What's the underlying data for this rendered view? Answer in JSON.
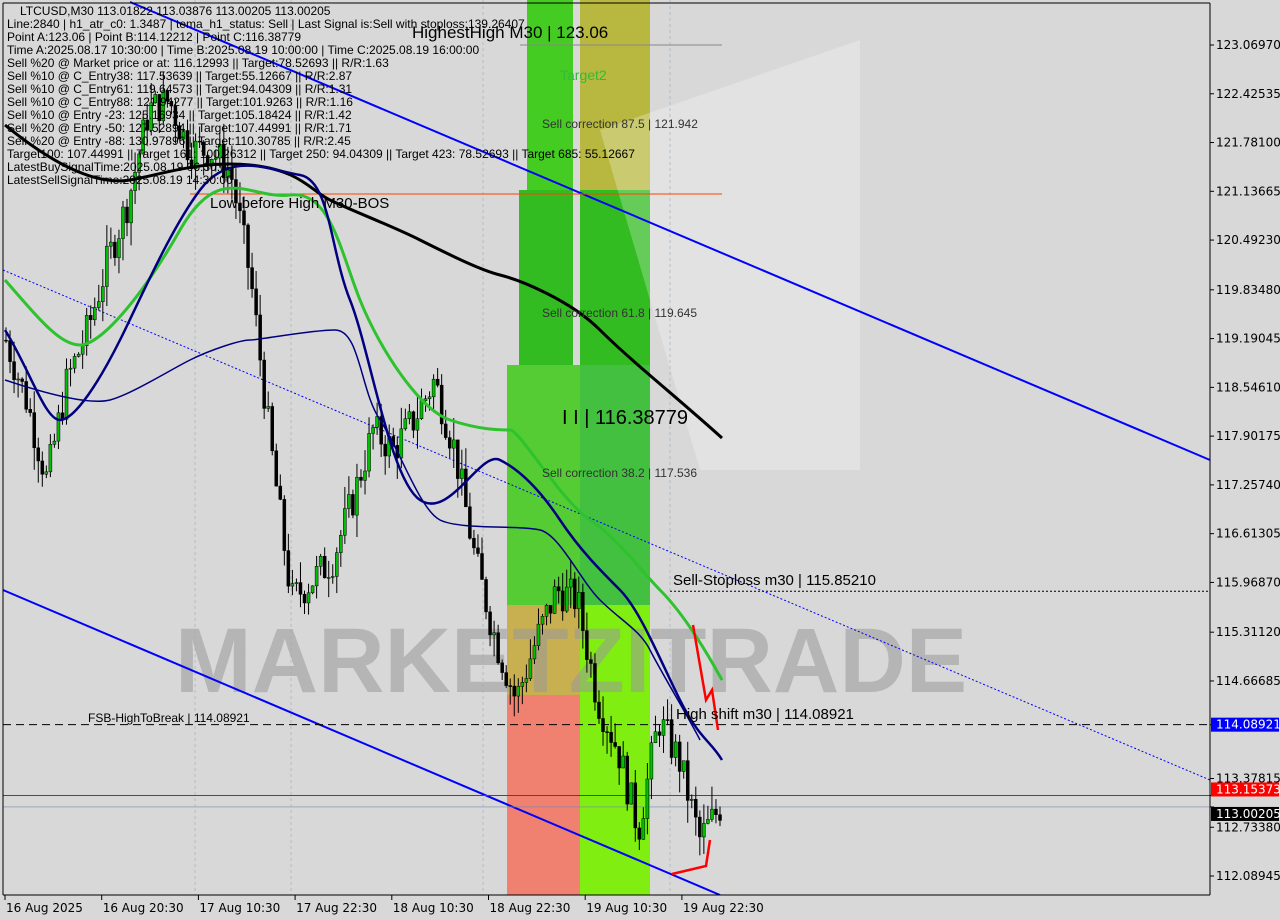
{
  "header": {
    "symbol_line": "LTCUSD,M30  113.01822 113.03876 113.00205 113.00205",
    "lines": [
      "Line:2840 | h1_atr_c0: 1.3487 | tema_h1_status: Sell | Last Signal is:Sell with stoploss:139.26407",
      "Point A:123.06 | Point B:114.12212 | Point C:116.38779",
      "Time A:2025.08.17 10:30:00 | Time B:2025.08.19 10:00:00 | Time C:2025.08.19 16:00:00",
      "Sell %20 @ Market price or at: 116.12993 || Target:78.52693 || R/R:1.63",
      "Sell %10 @ C_Entry38: 117.53639 || Target:55.12667 || R/R:2.87",
      "Sell %10 @ C_Entry61: 119.64573 || Target:94.04309 || R/R:1.31",
      "Sell %10 @ C_Entry88: 121.94277 || Target:101.9263 || R/R:1.16",
      "Sell %10 @ Entry -23: 125.16934 || Target:105.18424 || R/R:1.42",
      "Sell %20 @ Entry -50: 127.52894 || Target:107.44991 || R/R:1.71",
      "Sell %20 @ Entry -88: 130.97896 || Target:110.30785 || R/R:2.45",
      "Target100: 107.44991 || Target 161: 100.26312 || Target 250: 94.04309 || Target 423: 78.52693 || Target 685: 55.12667",
      "LatestBuySignalTime:2025.08.19 06:30:00",
      "LatestSellSignalTime:2025.08.19 14:30:00"
    ]
  },
  "annotations": {
    "highest_high": "HighestHigh   M30 | 123.06",
    "low_before_high": "Low before High   M30-BOS",
    "target2": "Target2",
    "sell_corr_875": "Sell correction 87.5 | 121.942",
    "sell_corr_618": "Sell correction 61.8 | 119.645",
    "sell_corr_382": "Sell correction 38.2 | 117.536",
    "point_c": "I I | 116.38779",
    "sell_stoploss": "Sell-Stoploss m30 | 115.85210",
    "high_shift": "High shift m30 | 114.08921",
    "fsb": "FSB-HighToBreak | 114.08921",
    "watermark": "MARKETZITRADE"
  },
  "chart_data": {
    "type": "candlestick",
    "symbol": "LTCUSD",
    "timeframe": "M30",
    "ylim": [
      111.85,
      123.6
    ],
    "y_ticks": [
      "123.06970",
      "122.42535",
      "121.78100",
      "121.13665",
      "120.49230",
      "119.83480",
      "119.19045",
      "118.54610",
      "117.90175",
      "117.25740",
      "116.61305",
      "115.96870",
      "115.31120",
      "114.66685",
      "114.08921",
      "113.37815",
      "113.15373",
      "113.00205",
      "112.73380",
      "112.08945"
    ],
    "y_tick_values": [
      123.0697,
      122.42535,
      121.781,
      121.13665,
      120.4923,
      119.8348,
      119.19045,
      118.5461,
      117.90175,
      117.2574,
      116.61305,
      115.9687,
      115.3112,
      114.66685,
      114.08921,
      113.37815,
      113.15373,
      113.00205,
      112.7338,
      112.08945
    ],
    "x_ticks": [
      "16 Aug 2025",
      "16 Aug 20:30",
      "17 Aug 10:30",
      "17 Aug 22:30",
      "18 Aug 10:30",
      "18 Aug 22:30",
      "19 Aug 10:30",
      "19 Aug 22:30"
    ],
    "close_path": [
      119.17,
      118.38,
      117.32,
      118.64,
      119.3,
      120.23,
      121.02,
      122.21,
      122.34,
      121.68,
      121.68,
      121.42,
      119.96,
      117.72,
      115.74,
      116.0,
      116.27,
      117.06,
      117.98,
      117.72,
      118.12,
      118.64,
      117.72,
      116.27,
      115.21,
      114.42,
      115.21,
      115.87,
      115.74,
      114.42,
      113.76,
      112.7,
      114.15,
      113.62,
      112.57,
      113.0
    ],
    "levels": {
      "high_shift": 114.08921,
      "bid": 113.15373,
      "last": 113.00205,
      "sell_stoploss": 115.8521,
      "low_before_high": 121.13,
      "highest_high": 123.06
    },
    "colors": {
      "bull": "#00c000",
      "bear": "#000000",
      "ma_long": "#000000",
      "ma_mid": "#2ec22e",
      "ema": "#000080",
      "channel": "#0000ff",
      "bid_line": "#ff0000",
      "high_shift_tag": "#0000ff"
    }
  }
}
